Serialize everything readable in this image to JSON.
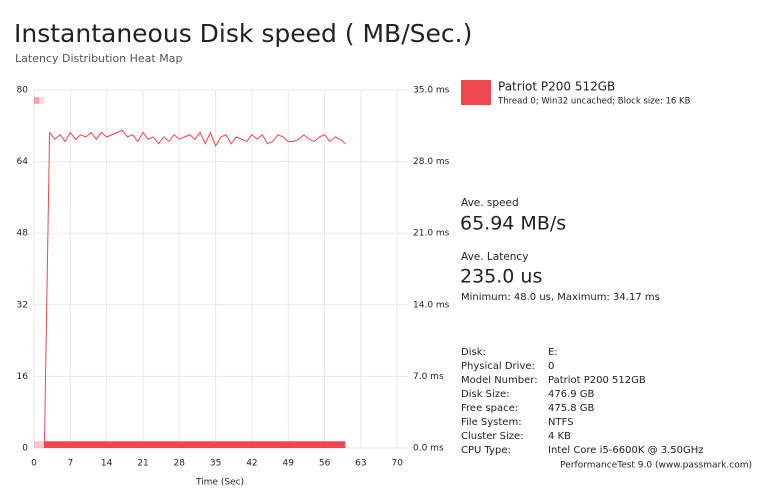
{
  "chart_data": {
    "type": "line",
    "title": "Instantaneous Disk speed ( MB/Sec.)",
    "subtitle": "Latency Distribution Heat Map",
    "xlabel": "Time (Sec)",
    "x": [
      2,
      3,
      4,
      5,
      6,
      7,
      8,
      9,
      10,
      11,
      12,
      13,
      14,
      15,
      16,
      17,
      18,
      19,
      20,
      21,
      22,
      23,
      24,
      25,
      26,
      27,
      28,
      29,
      30,
      31,
      32,
      33,
      34,
      35,
      36,
      37,
      38,
      39,
      40,
      41,
      42,
      43,
      44,
      45,
      46,
      47,
      48,
      49,
      50,
      51,
      52,
      53,
      54,
      55,
      56,
      57,
      58,
      59,
      60
    ],
    "series": [
      {
        "name": "Patriot P200 512GB",
        "color": "#f0474e",
        "values": [
          0,
          70.5,
          69,
          70,
          68.5,
          70.5,
          69,
          70,
          69.5,
          70.5,
          69,
          70.5,
          69.5,
          70,
          70.5,
          71,
          69.5,
          70,
          68.5,
          70.5,
          69,
          69.5,
          68,
          69.5,
          68.5,
          70,
          69,
          69.5,
          70,
          69,
          70.5,
          68,
          70.5,
          67.5,
          69.5,
          70,
          68,
          69.5,
          69,
          68.5,
          70,
          69,
          70,
          68,
          68.5,
          70,
          69.5,
          68.5,
          68.5,
          69,
          70,
          69,
          68.5,
          69.5,
          70,
          68.5,
          69.5,
          69,
          68
        ]
      }
    ],
    "xlim": [
      0,
      71.5
    ],
    "xticks": [
      0,
      7,
      14,
      21,
      28,
      35,
      42,
      49,
      56,
      63,
      70
    ],
    "ylim": [
      0,
      80
    ],
    "yticks": [
      0,
      16,
      32,
      48,
      64,
      80
    ],
    "y2lim": [
      0,
      35
    ],
    "y2ticks": [
      {
        "value": 0,
        "label": "0.0 ms"
      },
      {
        "value": 7,
        "label": "7.0 ms"
      },
      {
        "value": 14,
        "label": "14.0 ms"
      },
      {
        "value": 21,
        "label": "21.0 ms"
      },
      {
        "value": 28,
        "label": "28.0 ms"
      },
      {
        "value": 35,
        "label": "35.0 ms"
      }
    ],
    "grid": true,
    "heatmap": {
      "color": "#f0474e",
      "cells": [
        {
          "x0": 2,
          "x1": 60,
          "y0": 0,
          "y1": 1.5,
          "opacity": 1
        },
        {
          "x0": 0,
          "x1": 2,
          "y0": 0,
          "y1": 1.5,
          "opacity": 0.3
        },
        {
          "x0": 0,
          "x1": 1,
          "y0": 76.9,
          "y1": 78.4,
          "opacity": 0.5
        },
        {
          "x0": 1,
          "x1": 2,
          "y0": 76.9,
          "y1": 78.4,
          "opacity": 0.2
        }
      ]
    }
  },
  "legend_detail": "Thread 0; Win32 uncached; Block size: 16 KB",
  "stats": {
    "speed_label": "Ave. speed",
    "speed": "65.94 MB/s",
    "latency_label": "Ave. Latency",
    "latency": "235.0 us",
    "range": "Minimum: 48.0 us, Maximum: 34.17 ms"
  },
  "info": [
    [
      "Disk:",
      "E:"
    ],
    [
      "Physical Drive:",
      "0"
    ],
    [
      "Model Number:",
      "Patriot P200 512GB"
    ],
    [
      "Disk Size:",
      "476.9 GB"
    ],
    [
      "Free space:",
      "475.8 GB"
    ],
    [
      "File System:",
      "NTFS"
    ],
    [
      "Cluster Size:",
      "4 KB"
    ],
    [
      "CPU Type:",
      "Intel Core i5-6600K @ 3.50GHz"
    ]
  ],
  "footer": "PerformanceTest 9.0 (www.passmark.com)"
}
